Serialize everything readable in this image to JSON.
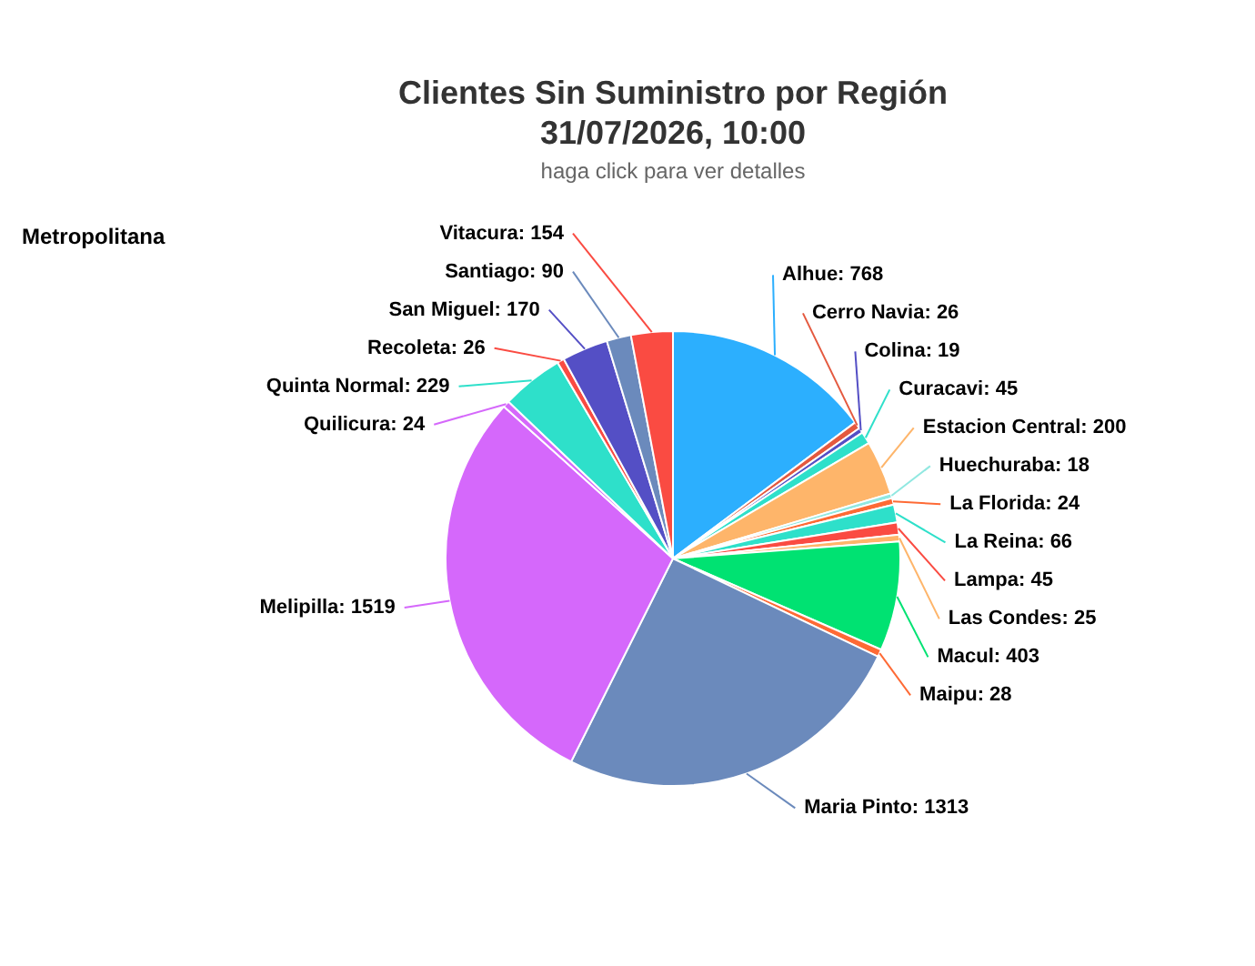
{
  "chart_data": {
    "type": "pie",
    "title": "Clientes Sin Suministro por Región\n31/07/2026, 10:00",
    "subtitle": "haga click para ver detalles",
    "annotations": [
      "Metropolitana"
    ],
    "categories": [
      "Alhue",
      "Cerro Navia",
      "Colina",
      "Curacavi",
      "Estacion Central",
      "Huechuraba",
      "La Florida",
      "La Reina",
      "Lampa",
      "Las Condes",
      "Macul",
      "Maipu",
      "Maria Pinto",
      "Melipilla",
      "Quilicura",
      "Quinta Normal",
      "Recoleta",
      "San Miguel",
      "Santiago",
      "Vitacura"
    ],
    "values": [
      768,
      26,
      19,
      45,
      200,
      18,
      24,
      66,
      45,
      25,
      403,
      28,
      1313,
      1519,
      24,
      229,
      26,
      170,
      90,
      154
    ],
    "colors": [
      "#2caffe",
      "#e4593f",
      "#544fc5",
      "#2ee0ca",
      "#feb56a",
      "#91e8e1",
      "#fe6a35",
      "#2ee0ca",
      "#fa4b42",
      "#feb56a",
      "#00e272",
      "#fe6a35",
      "#6b8abc",
      "#d568fb",
      "#d568fb",
      "#2ee0ca",
      "#fa4b42",
      "#544fc5",
      "#6b8abc",
      "#fa4b42"
    ],
    "value_labels": [
      ": 768",
      ": 26",
      ": 19",
      ": 45",
      ": 200",
      ": 18",
      ": 24",
      ": 66",
      ": 45",
      ": 25",
      ": 403",
      ": 28",
      ": 1313",
      ": 1519",
      ": 24",
      ": 229",
      ": 26",
      ": 170",
      ": 90",
      ": 154"
    ]
  }
}
